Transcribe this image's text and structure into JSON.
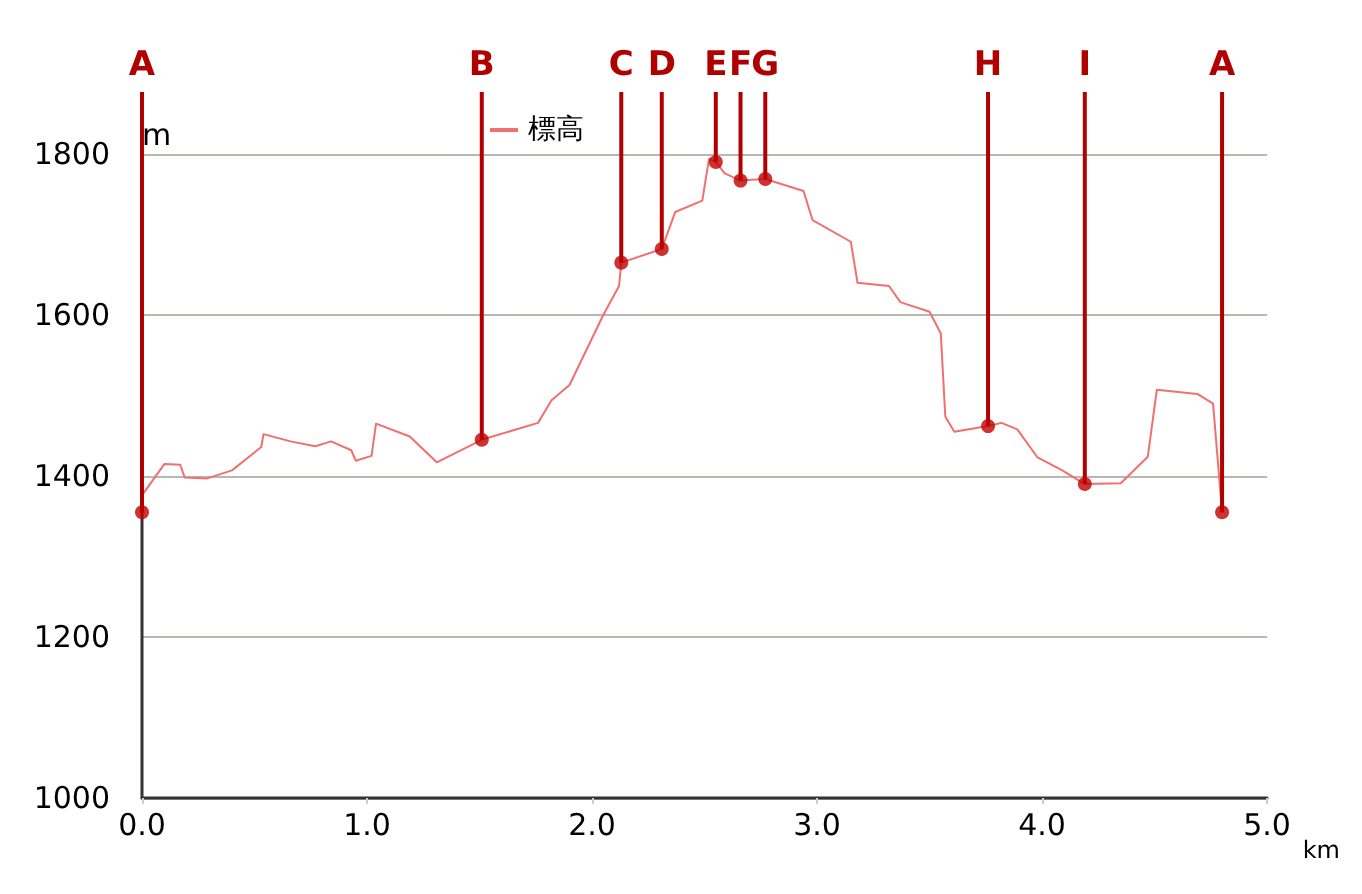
{
  "chart_data": {
    "type": "line",
    "xlabel": "km",
    "ylabel": "m",
    "x": [
      0,
      0.1,
      0.17,
      0.19,
      0.29,
      0.4,
      0.53,
      0.54,
      0.66,
      0.77,
      0.84,
      0.93,
      0.95,
      1.02,
      1.04,
      1.19,
      1.31,
      1.51,
      1.76,
      1.82,
      1.9,
      2.05,
      2.12,
      2.13,
      2.31,
      2.37,
      2.49,
      2.52,
      2.55,
      2.59,
      2.66,
      2.77,
      2.94,
      2.98,
      3.15,
      3.18,
      3.32,
      3.37,
      3.5,
      3.55,
      3.57,
      3.61,
      3.76,
      3.82,
      3.89,
      3.98,
      4.09,
      4.19,
      4.35,
      4.47,
      4.51,
      4.69,
      4.76,
      4.8
    ],
    "series": [
      {
        "name": "標高",
        "color": "#f07070",
        "values": [
          1376,
          1415,
          1414,
          1398,
          1397,
          1407,
          1436,
          1452,
          1443,
          1437,
          1443,
          1432,
          1419,
          1425,
          1465,
          1449,
          1417,
          1445,
          1466,
          1494,
          1513,
          1600,
          1636,
          1665,
          1682,
          1728,
          1742,
          1794,
          1790,
          1776,
          1767,
          1769,
          1754,
          1718,
          1691,
          1640,
          1636,
          1616,
          1604,
          1577,
          1474,
          1455,
          1462,
          1466,
          1458,
          1423,
          1407,
          1390,
          1391,
          1424,
          1507,
          1502,
          1490,
          1355
        ]
      },
      {
        "type": "scatter",
        "marker": "circle",
        "color": "#c00000",
        "x": [
          0,
          1.51,
          2.13,
          2.31,
          2.55,
          2.66,
          2.77,
          3.76,
          4.19,
          4.8
        ],
        "values": [
          1355,
          1445,
          1665,
          1682,
          1790,
          1767,
          1769,
          1462,
          1390,
          1355
        ]
      }
    ],
    "annotations": [
      {
        "text": "A",
        "x": 0,
        "y": 1355
      },
      {
        "text": "B",
        "x": 1.51,
        "y": 1445
      },
      {
        "text": "C",
        "x": 2.13,
        "y": 1665
      },
      {
        "text": "D",
        "x": 2.31,
        "y": 1682
      },
      {
        "text": "E",
        "x": 2.55,
        "y": 1790
      },
      {
        "text": "F",
        "x": 2.66,
        "y": 1767
      },
      {
        "text": "G",
        "x": 2.77,
        "y": 1769
      },
      {
        "text": "H",
        "x": 3.76,
        "y": 1462
      },
      {
        "text": "I",
        "x": 4.19,
        "y": 1390
      },
      {
        "text": "A",
        "x": 4.8,
        "y": 1355
      }
    ],
    "xlim": [
      0,
      5
    ],
    "xticks": [
      {
        "value": 0,
        "label": "0.0"
      },
      {
        "value": 1,
        "label": "1.0"
      },
      {
        "value": 2,
        "label": "2.0"
      },
      {
        "value": 3,
        "label": "3.0"
      },
      {
        "value": 4,
        "label": "4.0"
      },
      {
        "value": 5,
        "label": "5.0"
      }
    ],
    "ylim": [
      1000,
      1800
    ],
    "yticks": [
      1000,
      1200,
      1400,
      1600,
      1800
    ],
    "grid": "y",
    "legend": "top",
    "line_style": "solid"
  }
}
